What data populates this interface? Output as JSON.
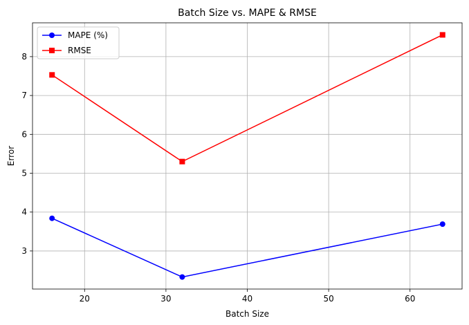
{
  "chart_data": {
    "type": "line",
    "title": "Batch Size vs. MAPE & RMSE",
    "xlabel": "Batch Size",
    "ylabel": "Error",
    "x": [
      16,
      32,
      64
    ],
    "xlim": [
      13.6,
      66.4
    ],
    "ylim": [
      2.02,
      8.87
    ],
    "xticks": [
      20,
      30,
      40,
      50,
      60
    ],
    "yticks": [
      3,
      4,
      5,
      6,
      7,
      8
    ],
    "grid": true,
    "legend_position": "top-left",
    "series": [
      {
        "name": "MAPE (%)",
        "values": [
          3.84,
          2.33,
          3.69
        ],
        "color": "#0000ff",
        "marker": "circle"
      },
      {
        "name": "RMSE",
        "values": [
          7.53,
          5.3,
          8.56
        ],
        "color": "#ff0000",
        "marker": "square"
      }
    ]
  }
}
